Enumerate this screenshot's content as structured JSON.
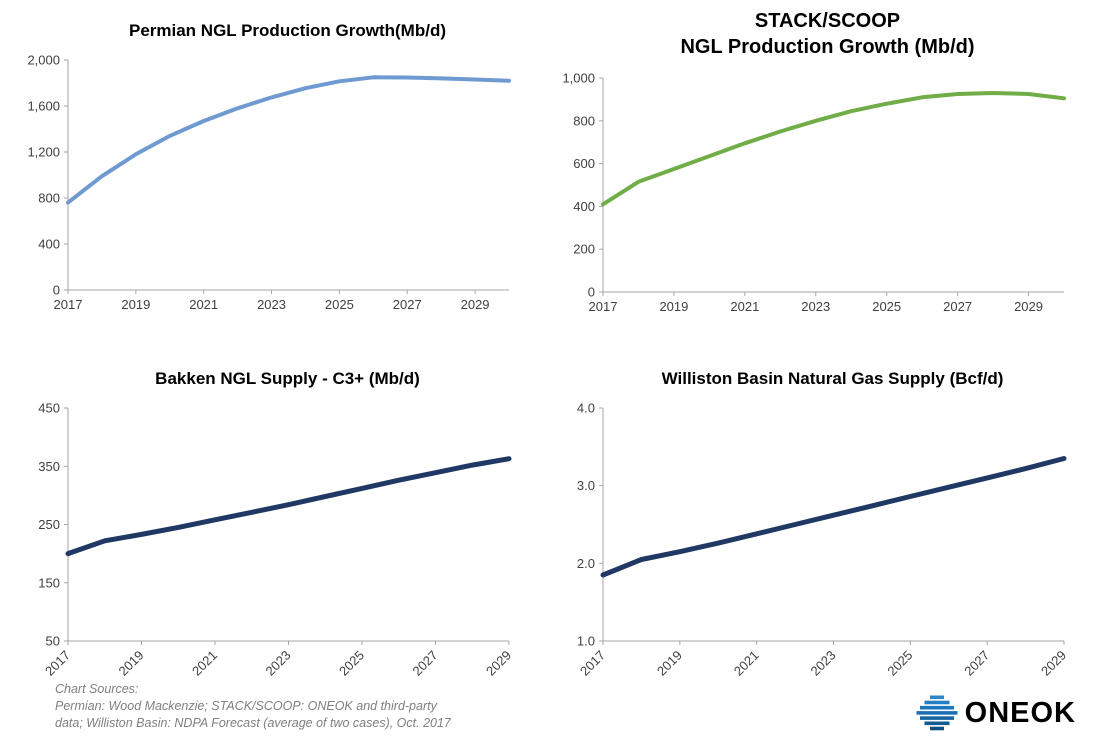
{
  "page": {
    "background": "#ffffff"
  },
  "chart_data": [
    {
      "type": "line",
      "title": "Permian NGL Production Growth(Mb/d)",
      "color": "#6f9ad1",
      "line_width": 4,
      "x": [
        2017,
        2018,
        2019,
        2020,
        2021,
        2022,
        2023,
        2024,
        2025,
        2026,
        2027,
        2028,
        2029,
        2030
      ],
      "values": [
        760,
        990,
        1180,
        1340,
        1470,
        1580,
        1675,
        1755,
        1815,
        1850,
        1848,
        1840,
        1830,
        1820
      ],
      "xlim": [
        2017,
        2030
      ],
      "ylim": [
        0,
        2000
      ],
      "y_ticks": [
        0,
        400,
        800,
        1200,
        1600,
        2000
      ],
      "y_tick_labels": [
        "0",
        "400",
        "800",
        "1,200",
        "1,600",
        "2,000"
      ],
      "x_ticks": [
        2017,
        2019,
        2021,
        2023,
        2025,
        2027,
        2029
      ],
      "x_tick_labels": [
        "2017",
        "2019",
        "2021",
        "2023",
        "2025",
        "2027",
        "2029"
      ],
      "rotate_x_labels": false,
      "legend_position": "none",
      "grid": false
    },
    {
      "type": "line",
      "title": "STACK/SCOOP\nNGL Production Growth (Mb/d)",
      "color": "#70ad47",
      "line_width": 4,
      "x": [
        2017,
        2018,
        2019,
        2020,
        2021,
        2022,
        2023,
        2024,
        2025,
        2026,
        2027,
        2028,
        2029,
        2030
      ],
      "values": [
        410,
        515,
        575,
        635,
        695,
        750,
        800,
        845,
        880,
        910,
        925,
        930,
        925,
        905
      ],
      "xlim": [
        2017,
        2030
      ],
      "ylim": [
        0,
        1000
      ],
      "y_ticks": [
        0,
        200,
        400,
        600,
        800,
        1000
      ],
      "y_tick_labels": [
        "0",
        "200",
        "400",
        "600",
        "800",
        "1,000"
      ],
      "x_ticks": [
        2017,
        2019,
        2021,
        2023,
        2025,
        2027,
        2029
      ],
      "x_tick_labels": [
        "2017",
        "2019",
        "2021",
        "2023",
        "2025",
        "2027",
        "2029"
      ],
      "rotate_x_labels": false,
      "legend_position": "none",
      "grid": false
    },
    {
      "type": "line",
      "title": "Bakken NGL Supply - C3+ (Mb/d)",
      "color": "#1f3864",
      "line_width": 5,
      "x": [
        2017,
        2018,
        2019,
        2020,
        2021,
        2022,
        2023,
        2024,
        2025,
        2026,
        2027,
        2028,
        2029
      ],
      "values": [
        200,
        222,
        233,
        245,
        258,
        271,
        284,
        298,
        312,
        326,
        339,
        352,
        363
      ],
      "xlim": [
        2017,
        2029
      ],
      "ylim": [
        50,
        450
      ],
      "y_ticks": [
        50,
        150,
        250,
        350,
        450
      ],
      "y_tick_labels": [
        "50",
        "150",
        "250",
        "350",
        "450"
      ],
      "x_ticks": [
        2017,
        2019,
        2021,
        2023,
        2025,
        2027,
        2029
      ],
      "x_tick_labels": [
        "2017",
        "2019",
        "2021",
        "2023",
        "2025",
        "2027",
        "2029"
      ],
      "rotate_x_labels": true,
      "legend_position": "none",
      "grid": false
    },
    {
      "type": "line",
      "title": "Williston Basin Natural Gas Supply (Bcf/d)",
      "color": "#1f3864",
      "line_width": 5,
      "x": [
        2017,
        2018,
        2019,
        2020,
        2021,
        2022,
        2023,
        2024,
        2025,
        2026,
        2027,
        2028,
        2029
      ],
      "values": [
        1.85,
        2.05,
        2.15,
        2.26,
        2.38,
        2.5,
        2.62,
        2.74,
        2.86,
        2.98,
        3.1,
        3.22,
        3.35
      ],
      "xlim": [
        2017,
        2029
      ],
      "ylim": [
        1.0,
        4.0
      ],
      "y_ticks": [
        1.0,
        2.0,
        3.0,
        4.0
      ],
      "y_tick_labels": [
        "1.0",
        "2.0",
        "3.0",
        "4.0"
      ],
      "x_ticks": [
        2017,
        2019,
        2021,
        2023,
        2025,
        2027,
        2029
      ],
      "x_tick_labels": [
        "2017",
        "2019",
        "2021",
        "2023",
        "2025",
        "2027",
        "2029"
      ],
      "rotate_x_labels": true,
      "legend_position": "none",
      "grid": false
    }
  ],
  "footer": {
    "sources": "Chart Sources:\nPermian: Wood Mackenzie; STACK/SCOOP: ONEOK  and third-party\ndata; Williston Basin: NDPA Forecast (average of two cases), Oct. 2017"
  },
  "logo": {
    "text": "ONEOK",
    "icon_color": "#1d70b7"
  }
}
